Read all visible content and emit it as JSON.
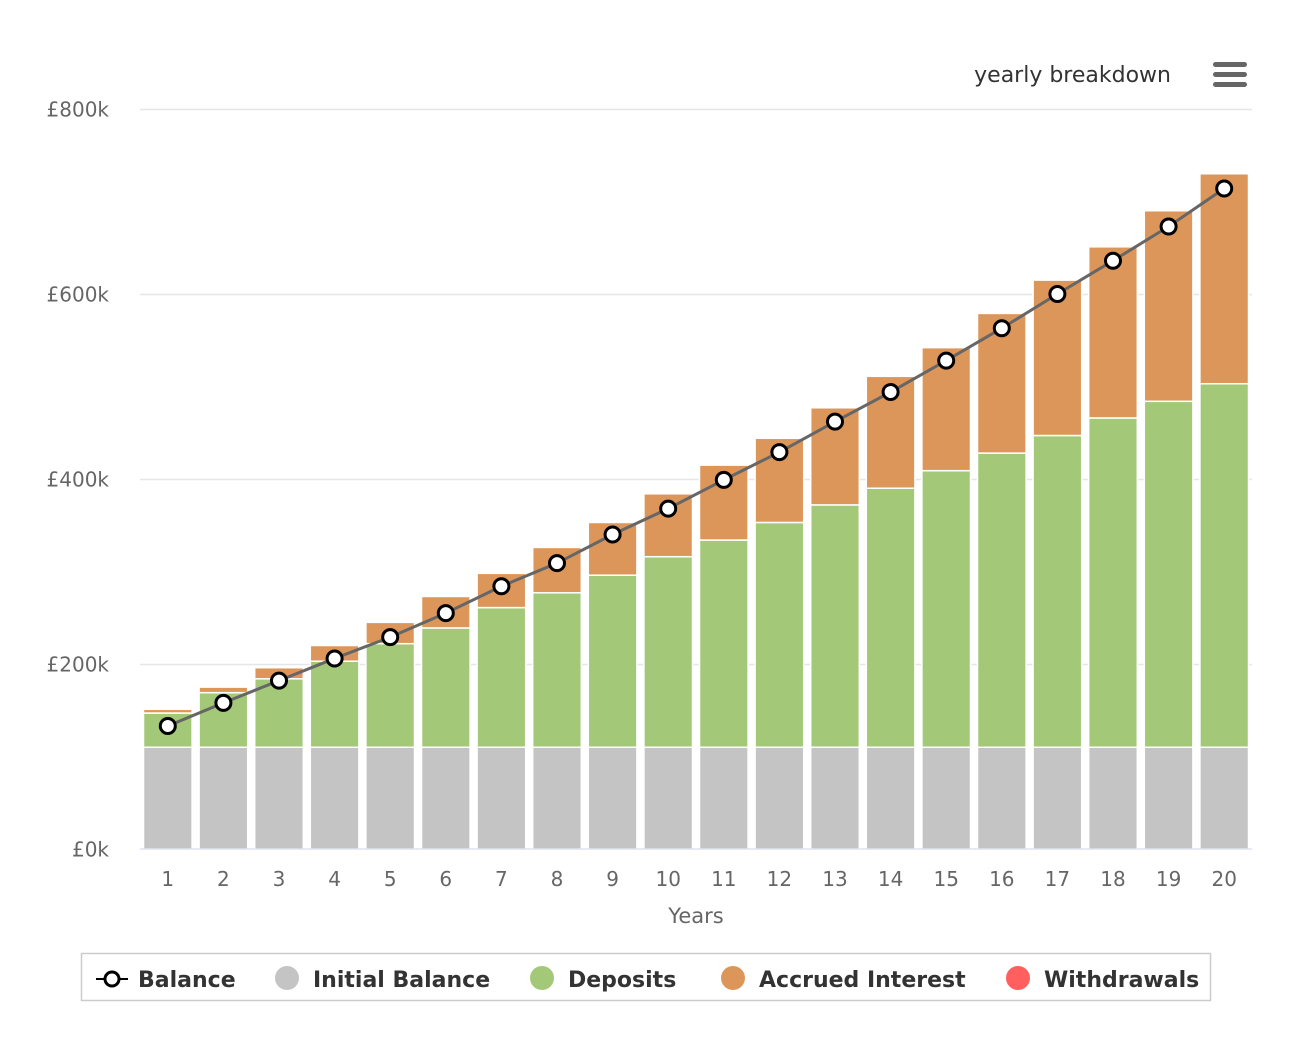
{
  "chart_data": {
    "type": "bar",
    "title": "yearly breakdown",
    "xlabel": "Years",
    "ylabel": "",
    "ylim": [
      0,
      800000
    ],
    "yticks": [
      {
        "value": 0,
        "label": "£0k"
      },
      {
        "value": 200000,
        "label": "£200k"
      },
      {
        "value": 400000,
        "label": "£400k"
      },
      {
        "value": 600000,
        "label": "£600k"
      },
      {
        "value": 800000,
        "label": "£800k"
      }
    ],
    "categories": [
      "1",
      "2",
      "3",
      "4",
      "5",
      "6",
      "7",
      "8",
      "9",
      "10",
      "11",
      "12",
      "13",
      "14",
      "15",
      "16",
      "17",
      "18",
      "19",
      "20"
    ],
    "stacked": true,
    "grid": true,
    "legend_placement": "bottom",
    "series": [
      {
        "name": "Initial Balance",
        "type": "bar",
        "color": "#c4c4c4",
        "values": [
          110000,
          110000,
          110000,
          110000,
          110000,
          110000,
          110000,
          110000,
          110000,
          110000,
          110000,
          110000,
          110000,
          110000,
          110000,
          110000,
          110000,
          110000,
          110000,
          110000
        ]
      },
      {
        "name": "Deposits",
        "type": "bar",
        "color": "#a2c878",
        "values": [
          37000,
          59000,
          74000,
          93000,
          112000,
          129000,
          151000,
          167000,
          186000,
          206000,
          224000,
          243000,
          262000,
          280000,
          299000,
          318000,
          337000,
          356000,
          374000,
          393000
        ]
      },
      {
        "name": "Accrued Interest",
        "type": "bar",
        "color": "#dd9659",
        "values": [
          4000,
          6000,
          12000,
          17000,
          23000,
          34000,
          37000,
          49000,
          57000,
          68000,
          81000,
          91000,
          105000,
          121000,
          133000,
          151000,
          168000,
          185000,
          206000,
          227000
        ]
      },
      {
        "name": "Withdrawals",
        "type": "bar",
        "color": "#ff5f5f",
        "values": [
          0,
          0,
          0,
          0,
          0,
          0,
          0,
          0,
          0,
          0,
          0,
          0,
          0,
          0,
          0,
          0,
          0,
          0,
          0,
          0
        ]
      },
      {
        "name": "Balance",
        "type": "line",
        "color": "#666666",
        "values": [
          133000,
          158000,
          182000,
          206000,
          229000,
          255000,
          284000,
          309000,
          340000,
          368000,
          399000,
          429000,
          462000,
          494000,
          528000,
          563000,
          600000,
          636000,
          673000,
          714000
        ]
      }
    ]
  },
  "legend": {
    "items": [
      {
        "name": "Balance",
        "marker": "line-circle",
        "color": "#000000"
      },
      {
        "name": "Initial Balance",
        "marker": "circle",
        "color": "#c4c4c4"
      },
      {
        "name": "Deposits",
        "marker": "circle",
        "color": "#a2c878"
      },
      {
        "name": "Accrued Interest",
        "marker": "circle",
        "color": "#dd9659"
      },
      {
        "name": "Withdrawals",
        "marker": "circle",
        "color": "#ff5f5f"
      }
    ]
  },
  "menu": {
    "icon": "hamburger-menu-icon"
  }
}
